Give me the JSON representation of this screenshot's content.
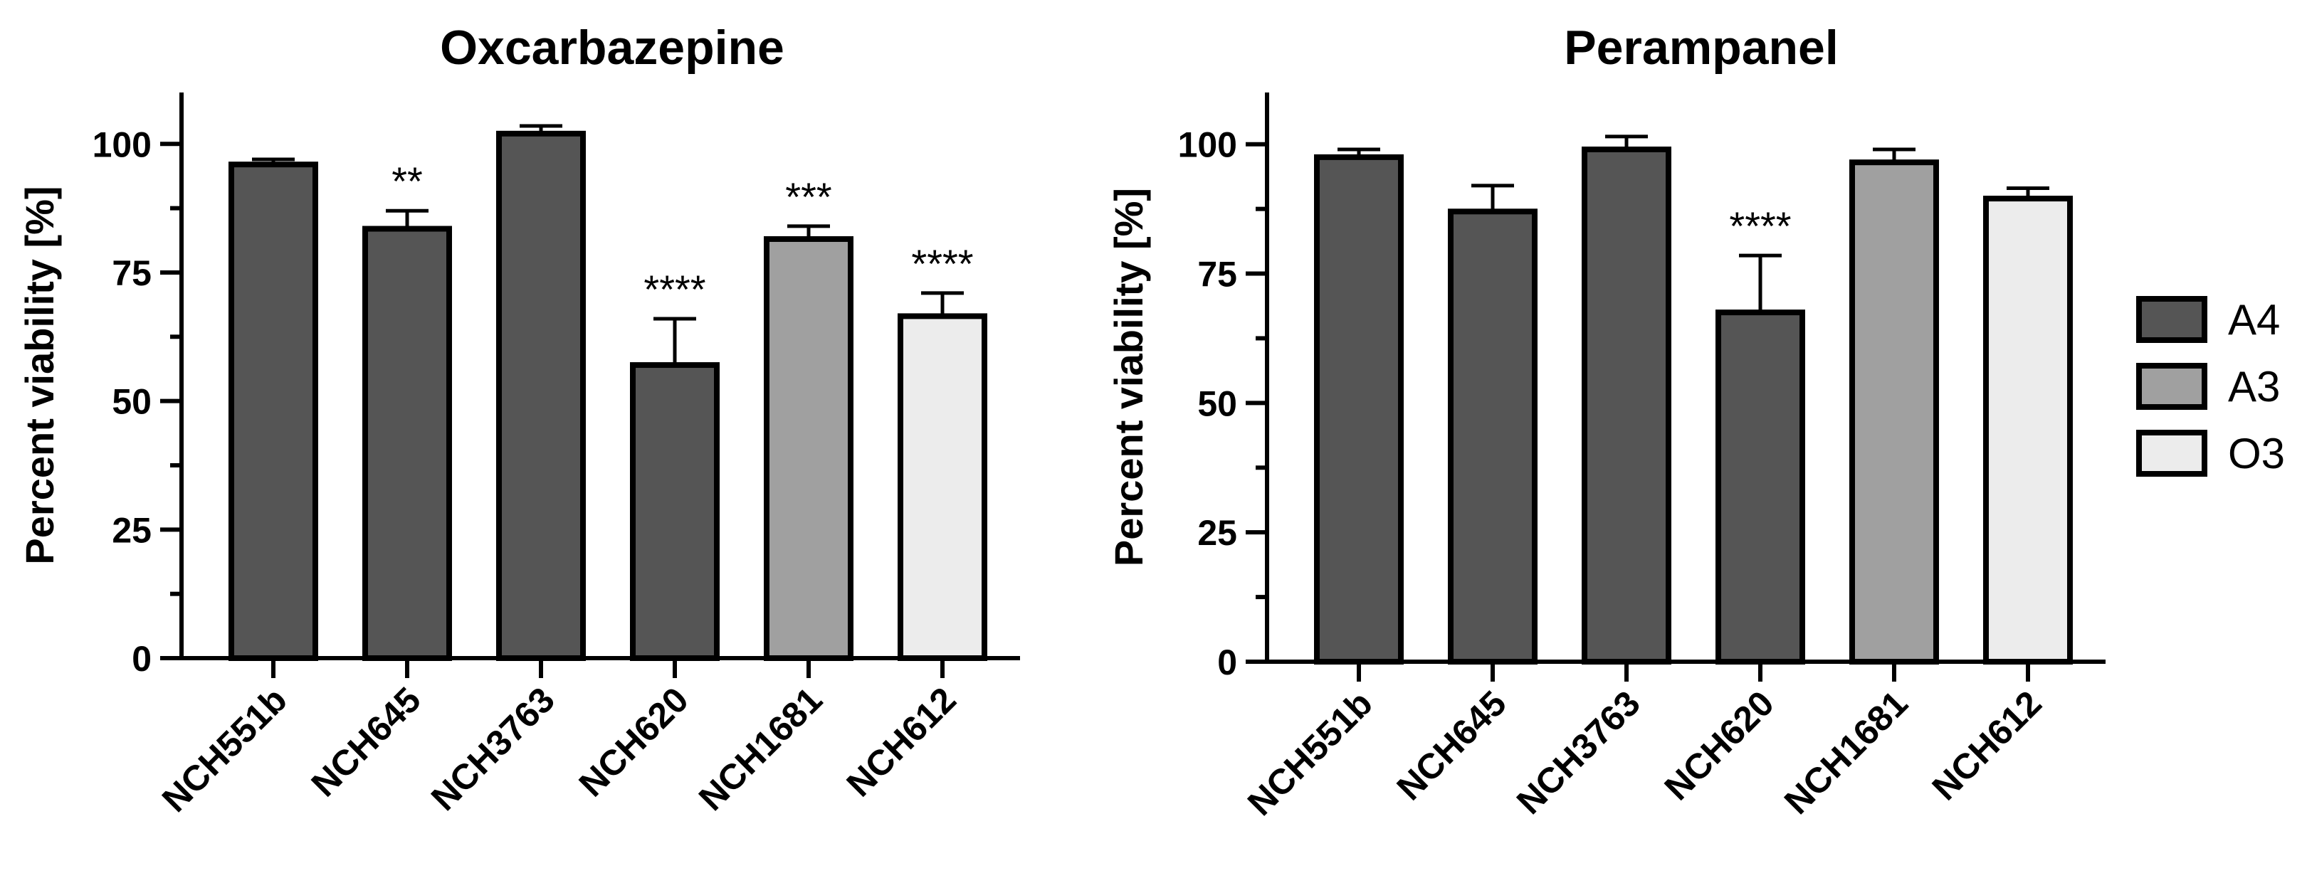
{
  "chart_data": [
    {
      "type": "bar",
      "title": "Oxcarbazepine",
      "ylabel": "Percent viability [%]",
      "xlabel": "",
      "ylim": [
        0,
        110
      ],
      "yticks": [
        0,
        25,
        50,
        75,
        100
      ],
      "categories": [
        "NCH551b",
        "NCH645",
        "NCH3763",
        "NCH620",
        "NCH1681",
        "NCH612"
      ],
      "values": [
        96,
        83.5,
        102,
        57,
        81.5,
        66.5
      ],
      "errors": [
        1,
        3.5,
        1.5,
        9,
        2.5,
        4.5
      ],
      "groups": [
        "A4",
        "A4",
        "A4",
        "A4",
        "A3",
        "O3"
      ],
      "significance": [
        "",
        "**",
        "",
        "****",
        "***",
        "****"
      ]
    },
    {
      "type": "bar",
      "title": "Perampanel",
      "ylabel": "Percent viability [%]",
      "xlabel": "",
      "ylim": [
        0,
        110
      ],
      "yticks": [
        0,
        25,
        50,
        75,
        100
      ],
      "categories": [
        "NCH551b",
        "NCH645",
        "NCH3763",
        "NCH620",
        "NCH1681",
        "NCH612"
      ],
      "values": [
        97.5,
        87,
        99,
        67.5,
        96.5,
        89.5
      ],
      "errors": [
        1.5,
        5,
        2.5,
        11,
        2.5,
        2
      ],
      "groups": [
        "A4",
        "A4",
        "A4",
        "A4",
        "A3",
        "O3"
      ],
      "significance": [
        "",
        "",
        "",
        "****",
        "",
        ""
      ]
    }
  ],
  "legend": [
    {
      "label": "A4",
      "color": "#555555"
    },
    {
      "label": "A3",
      "color": "#a0a0a0"
    },
    {
      "label": "O3",
      "color": "#ececec"
    }
  ]
}
